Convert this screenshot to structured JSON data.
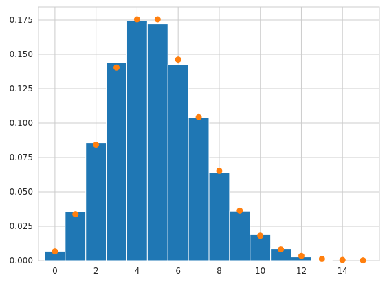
{
  "chart_data": {
    "type": "bar",
    "x": [
      0,
      1,
      2,
      3,
      4,
      5,
      6,
      7,
      8,
      9,
      10,
      11,
      12,
      13,
      14,
      15
    ],
    "series": [
      {
        "kind": "bar",
        "values": [
          0.0068,
          0.0355,
          0.0857,
          0.144,
          0.1745,
          0.1722,
          0.1426,
          0.1041,
          0.0638,
          0.0359,
          0.0188,
          0.0087,
          0.0027,
          0.0002,
          0.0,
          0.0
        ]
      },
      {
        "kind": "scatter",
        "values": [
          0.0067,
          0.0337,
          0.0842,
          0.1404,
          0.1755,
          0.1755,
          0.1462,
          0.1044,
          0.0653,
          0.0363,
          0.0181,
          0.0082,
          0.0034,
          0.0013,
          0.0005,
          0.0002
        ]
      }
    ],
    "xticks": [
      "0",
      "2",
      "4",
      "6",
      "8",
      "10",
      "12",
      "14"
    ],
    "yticks": [
      "0.000",
      "0.025",
      "0.050",
      "0.075",
      "0.100",
      "0.125",
      "0.150",
      "0.175"
    ],
    "xlim": [
      -0.8,
      15.8
    ],
    "ylim": [
      0,
      0.1845
    ],
    "grid": true,
    "colors": {
      "bar": "#1f77b4",
      "scatter": "#ff7f0e"
    }
  }
}
